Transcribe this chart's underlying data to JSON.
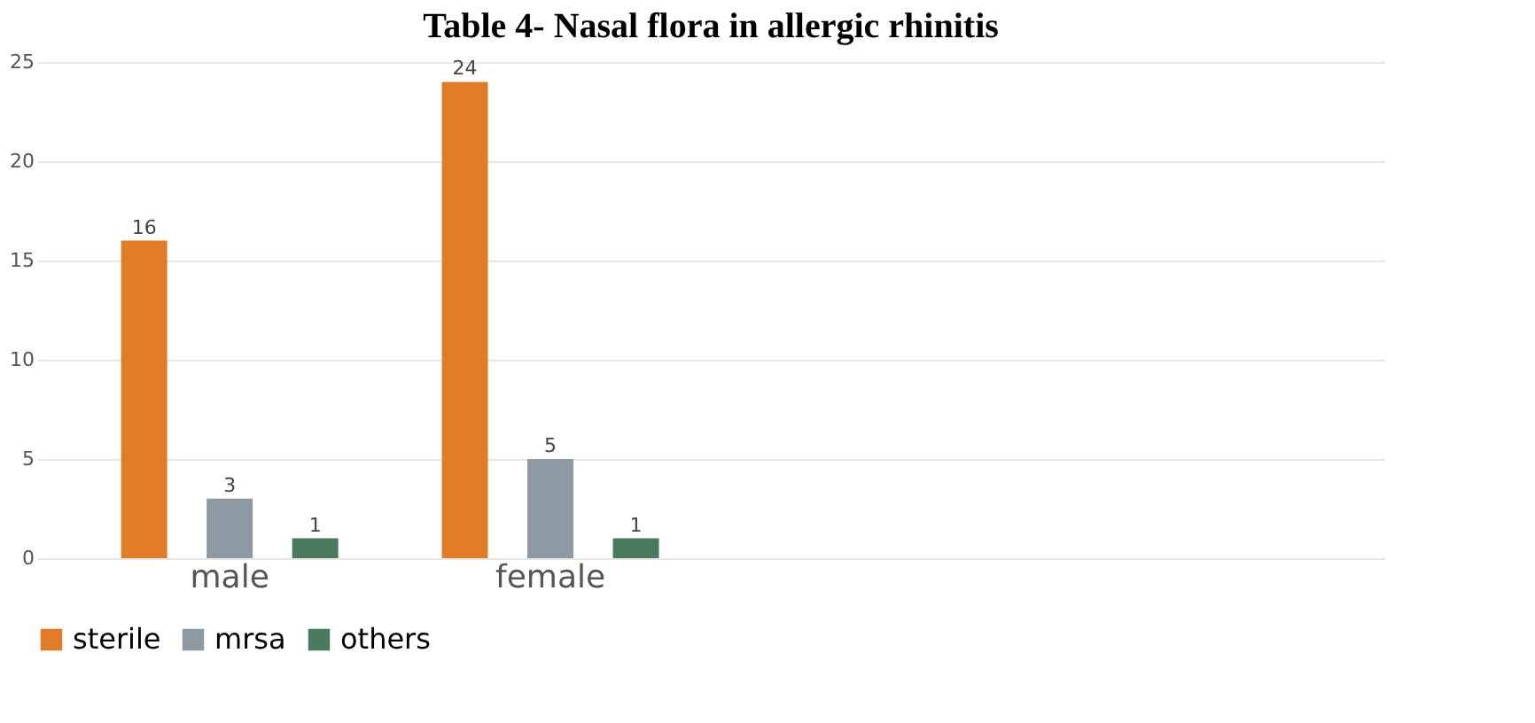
{
  "chart_data": {
    "type": "bar",
    "title": "Table 4- Nasal flora in allergic rhinitis",
    "categories": [
      "male",
      "female",
      null,
      null
    ],
    "series": [
      {
        "name": "sterile",
        "color": "#e07b28",
        "values": [
          16,
          24,
          null,
          null
        ]
      },
      {
        "name": "mrsa",
        "color": "#8e9aa3",
        "values": [
          3,
          5,
          null,
          null
        ]
      },
      {
        "name": "others",
        "color": "#4a7a5e",
        "values": [
          1,
          1,
          null,
          null
        ]
      }
    ],
    "ylim": [
      0,
      25
    ],
    "yticks": [
      0,
      5,
      10,
      15,
      20,
      25
    ],
    "grid": "y",
    "legend": "bottom",
    "data_labels": true
  }
}
